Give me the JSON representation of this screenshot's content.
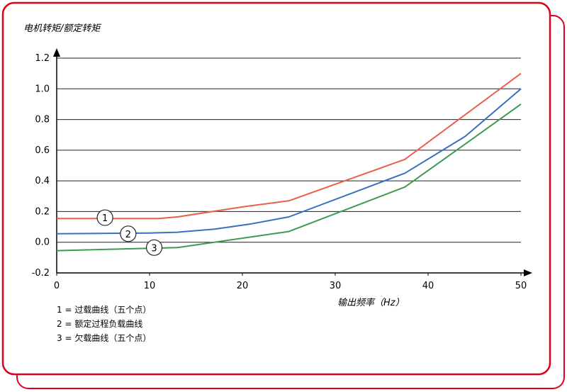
{
  "chart_data": {
    "type": "line",
    "ylabel": "电机转矩/额定转矩",
    "xlabel": "输出频率（Hz）",
    "xlim": [
      0,
      50
    ],
    "ylim": [
      -0.2,
      1.2
    ],
    "xticks": [
      "0",
      "10",
      "20",
      "30",
      "40",
      "50"
    ],
    "yticks": [
      "1.2",
      "1.0",
      "0.8",
      "0.6",
      "0.4",
      "0.2",
      "0.0",
      "-0.2"
    ],
    "grid": "horizontal",
    "series": [
      {
        "name": "1",
        "color": "#e8604c",
        "x": [
          0,
          11,
          13,
          20,
          25,
          37.5,
          50
        ],
        "y": [
          0.155,
          0.155,
          0.165,
          0.23,
          0.27,
          0.54,
          1.1
        ]
      },
      {
        "name": "2",
        "color": "#3a6fc0",
        "x": [
          0,
          10,
          13,
          17,
          21,
          25,
          37.5,
          44,
          50
        ],
        "y": [
          0.055,
          0.06,
          0.065,
          0.085,
          0.12,
          0.165,
          0.45,
          0.69,
          1.0
        ]
      },
      {
        "name": "3",
        "color": "#3f9a4f",
        "x": [
          0,
          13,
          25,
          37.5,
          44,
          50
        ],
        "y": [
          -0.055,
          -0.035,
          0.07,
          0.36,
          0.64,
          0.9
        ]
      }
    ],
    "markers": [
      {
        "label": "1",
        "x": 5.2,
        "y": 0.16
      },
      {
        "label": "2",
        "x": 7.7,
        "y": 0.055
      },
      {
        "label": "3",
        "x": 10.5,
        "y": -0.035
      }
    ],
    "legend": [
      "1 = 过载曲线（五个点）",
      "2 = 额定过程负载曲线",
      "3 = 欠载曲线（五个点）"
    ],
    "frame_color": "#e0001b"
  }
}
